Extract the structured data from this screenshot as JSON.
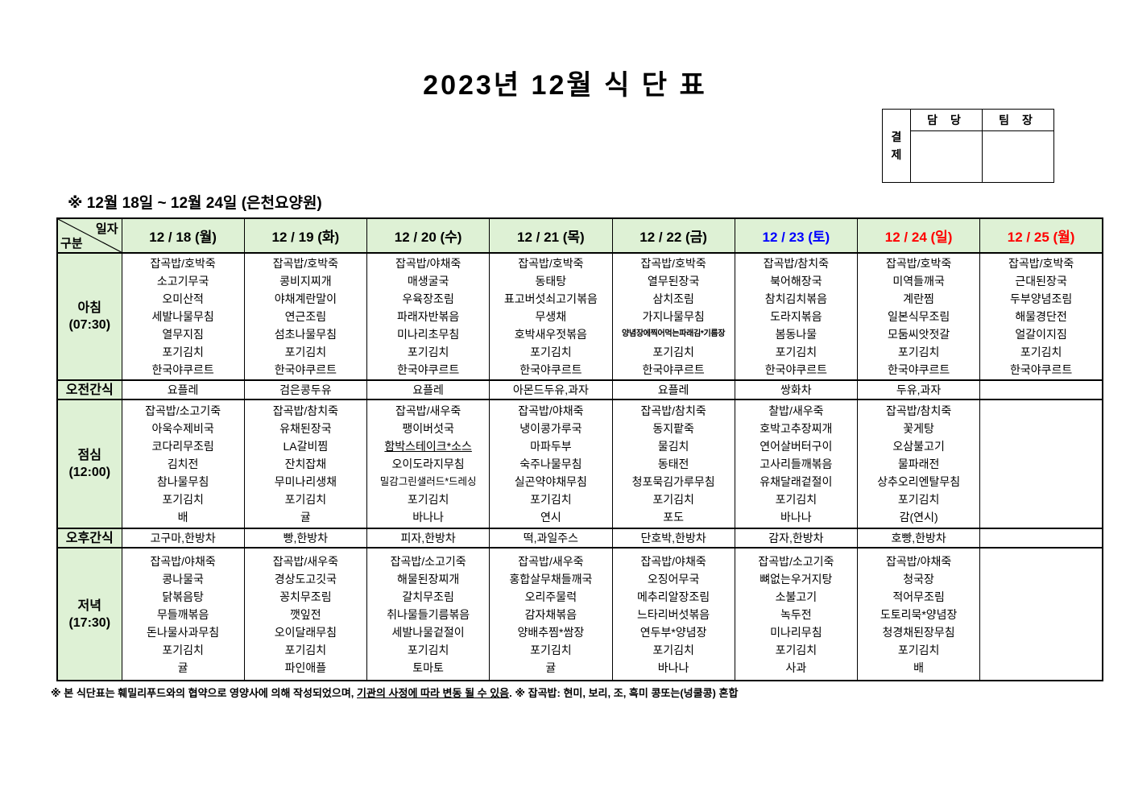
{
  "title": "2023년 12월 식 단 표",
  "subtitle": "※  12월 18일 ~ 12월 24일 (은천요양원)",
  "approval": {
    "vertical_label": "결제",
    "columns": [
      "담 당",
      "팀 장"
    ]
  },
  "theme": {
    "header_green": "#def1d5",
    "saturday_blue": "#0000ff",
    "holiday_red": "#ff0000",
    "weekday_black": "#000000"
  },
  "table": {
    "corner": {
      "top": "일자",
      "bottom": "구분"
    },
    "days": [
      {
        "label": "12 / 18 (월)",
        "color": "#000000"
      },
      {
        "label": "12 / 19 (화)",
        "color": "#000000"
      },
      {
        "label": "12 / 20 (수)",
        "color": "#000000"
      },
      {
        "label": "12 / 21 (목)",
        "color": "#000000"
      },
      {
        "label": "12 / 22 (금)",
        "color": "#000000"
      },
      {
        "label": "12 / 23 (토)",
        "color": "#0000ff"
      },
      {
        "label": "12 / 24 (일)",
        "color": "#ff0000"
      },
      {
        "label": "12 / 25 (월)",
        "color": "#ff0000"
      }
    ],
    "underlined_items": [
      "함박스테이크*소스"
    ],
    "rows": [
      {
        "id": "breakfast",
        "label": "아침",
        "time": "(07:30)",
        "type": "meal",
        "cells": [
          [
            "잡곡밥/호박죽",
            "소고기무국",
            "오미산적",
            "세발나물무침",
            "열무지짐",
            "포기김치",
            "한국야쿠르트"
          ],
          [
            "잡곡밥/호박죽",
            "콩비지찌개",
            "야채계란말이",
            "연근조림",
            "섬초나물무침",
            "포기김치",
            "한국야쿠르트"
          ],
          [
            "잡곡밥/야채죽",
            "매생굴국",
            "우육장조림",
            "파래자반볶음",
            "미나리초무침",
            "포기김치",
            "한국야쿠르트"
          ],
          [
            "잡곡밥/호박죽",
            "동태탕",
            "표고버섯쇠고기볶음",
            "무생채",
            "호박새우젓볶음",
            "포기김치",
            "한국야쿠르트"
          ],
          [
            "잡곡밥/호박죽",
            "열무된장국",
            "삼치조림",
            "가지나물무침",
            "양념장에찍어먹는파래김*기름장",
            "포기김치",
            "한국야쿠르트"
          ],
          [
            "잡곡밥/참치죽",
            "북어해장국",
            "참치김치볶음",
            "도라지볶음",
            "봄동나물",
            "포기김치",
            "한국야쿠르트"
          ],
          [
            "잡곡밥/호박죽",
            "미역들깨국",
            "계란찜",
            "일본식무조림",
            "모둠씨앗젓갈",
            "포기김치",
            "한국야쿠르트"
          ],
          [
            "잡곡밥/호박죽",
            "근대된장국",
            "두부양념조림",
            "해물경단전",
            "얼갈이지짐",
            "포기김치",
            "한국야쿠르트"
          ]
        ]
      },
      {
        "id": "am-snack",
        "label": "오전간식",
        "time": "",
        "type": "snack",
        "cells": [
          [
            "요플레"
          ],
          [
            "검은콩두유"
          ],
          [
            "요플레"
          ],
          [
            "아몬드두유,과자"
          ],
          [
            "요플레"
          ],
          [
            "쌍화차"
          ],
          [
            "두유,과자"
          ],
          []
        ]
      },
      {
        "id": "lunch",
        "label": "점심",
        "time": "(12:00)",
        "type": "meal",
        "cells": [
          [
            "잡곡밥/소고기죽",
            "아욱수제비국",
            "코다리무조림",
            "김치전",
            "참나물무침",
            "포기김치",
            "배"
          ],
          [
            "잡곡밥/참치죽",
            "유채된장국",
            "LA갈비찜",
            "잔치잡채",
            "무미나리생채",
            "포기김치",
            "귤"
          ],
          [
            "잡곡밥/새우죽",
            "팽이버섯국",
            "함박스테이크*소스",
            "오이도라지무침",
            "밀감그린샐러드*드레싱",
            "포기김치",
            "바나나"
          ],
          [
            "잡곡밥/야채죽",
            "냉이콩가루국",
            "마파두부",
            "숙주나물무침",
            "실곤약야채무침",
            "포기김치",
            "연시"
          ],
          [
            "잡곡밥/참치죽",
            "동지팥죽",
            "물김치",
            "동태전",
            "청포묵김가루무침",
            "포기김치",
            "포도"
          ],
          [
            "찰밥/새우죽",
            "호박고추장찌개",
            "연어살버터구이",
            "고사리들깨볶음",
            "유채달래겉절이",
            "포기김치",
            "바나나"
          ],
          [
            "잡곡밥/참치죽",
            "꽃게탕",
            "오삼불고기",
            "물파래전",
            "상추오리엔탈무침",
            "포기김치",
            "감(연시)"
          ],
          []
        ]
      },
      {
        "id": "pm-snack",
        "label": "오후간식",
        "time": "",
        "type": "snack",
        "cells": [
          [
            "고구마,한방차"
          ],
          [
            "빵,한방차"
          ],
          [
            "피자,한방차"
          ],
          [
            "떡,과일주스"
          ],
          [
            "단호박,한방차"
          ],
          [
            "감자,한방차"
          ],
          [
            "호빵,한방차"
          ],
          []
        ]
      },
      {
        "id": "dinner",
        "label": "저녁",
        "time": "(17:30)",
        "type": "meal",
        "cells": [
          [
            "잡곡밥/야채죽",
            "콩나물국",
            "닭볶음탕",
            "무들깨볶음",
            "돈나물사과무침",
            "포기김치",
            "귤"
          ],
          [
            "잡곡밥/새우죽",
            "경상도고깃국",
            "꽁치무조림",
            "깻잎전",
            "오이달래무침",
            "포기김치",
            "파인애플"
          ],
          [
            "잡곡밥/소고기죽",
            "해물된장찌개",
            "갈치무조림",
            "취나물들기름볶음",
            "세발나물겉절이",
            "포기김치",
            "토마토"
          ],
          [
            "잡곡밥/새우죽",
            "홍합살무채들깨국",
            "오리주물럭",
            "감자채볶음",
            "양배추찜*쌈장",
            "포기김치",
            "귤"
          ],
          [
            "잡곡밥/야채죽",
            "오징어무국",
            "메추리알장조림",
            "느타리버섯볶음",
            "연두부*양념장",
            "포기김치",
            "바나나"
          ],
          [
            "잡곡밥/소고기죽",
            "뼈없는우거지탕",
            "소불고기",
            "녹두전",
            "미나리무침",
            "포기김치",
            "사과"
          ],
          [
            "잡곡밥/야채죽",
            "청국장",
            "적어무조림",
            "도토리묵*양념장",
            "청경채된장무침",
            "포기김치",
            "배"
          ],
          []
        ]
      }
    ]
  },
  "footer": {
    "prefix": "※  본 식단표는 훼밀리푸드와의 협약으로 영양사에 의해 작성되었으며, ",
    "underlined": "기관의 사정에 따라 변동 될 수 있음",
    "suffix": ". ※ 잡곡밥: 현미, 보리, 조, 흑미 콩또는(넝쿨콩) 혼합"
  }
}
